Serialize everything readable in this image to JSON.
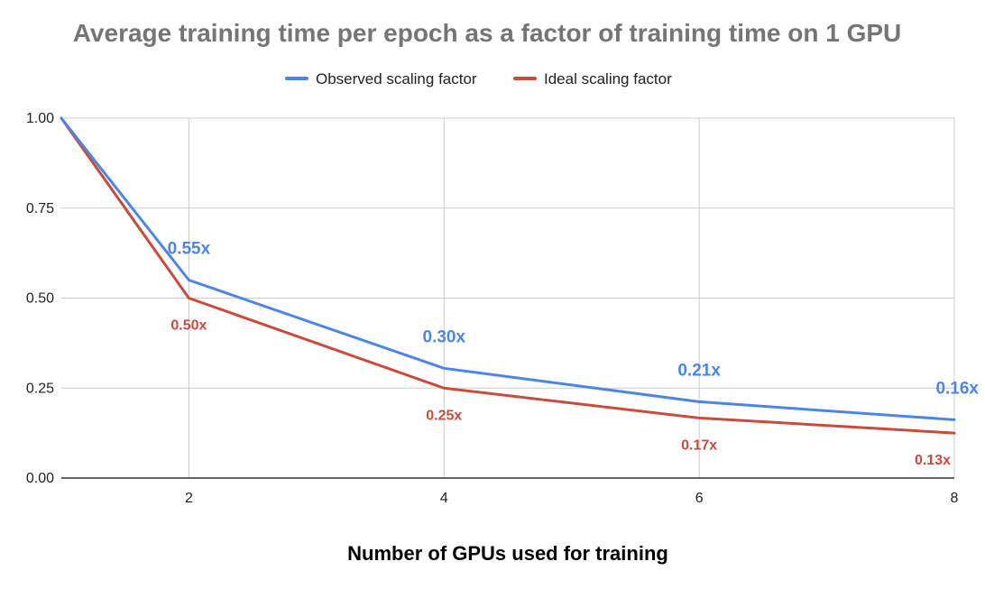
{
  "chart_data": {
    "type": "line",
    "title": "Average training time per epoch as a factor of training time on 1 GPU",
    "xlabel": "Number of GPUs used for training",
    "ylabel": "",
    "x": [
      1,
      2,
      4,
      6,
      8
    ],
    "xlim": [
      1,
      8
    ],
    "ylim": [
      0,
      1
    ],
    "xticks": [
      2,
      4,
      6,
      8
    ],
    "xtick_labels": [
      "2",
      "4",
      "6",
      "8"
    ],
    "yticks": [
      0,
      0.25,
      0.5,
      0.75,
      1.0
    ],
    "ytick_labels": [
      "0.00",
      "0.25",
      "0.50",
      "0.75",
      "1.00"
    ],
    "grid": true,
    "legend_position": "top-center",
    "series": [
      {
        "name": "Observed scaling factor",
        "color": "#4a86e8",
        "values": [
          1.0,
          0.55,
          0.305,
          0.212,
          0.162
        ],
        "data_labels": [
          "",
          "0.55x",
          "0.30x",
          "0.21x",
          "0.16x"
        ]
      },
      {
        "name": "Ideal scaling factor",
        "color": "#cc4a3b",
        "values": [
          1.0,
          0.5,
          0.25,
          0.167,
          0.125
        ],
        "data_labels": [
          "",
          "0.50x",
          "0.25x",
          "0.17x",
          "0.13x"
        ]
      }
    ]
  }
}
